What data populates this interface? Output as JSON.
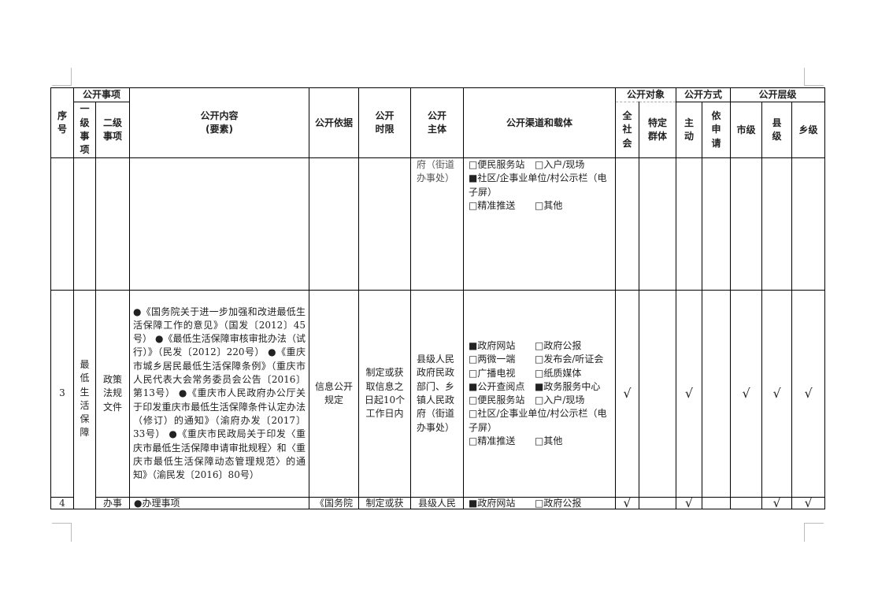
{
  "header": {
    "seq": "序号",
    "matter_group": "公开事项",
    "level1": "一级事项",
    "level2": "二级事项",
    "content": "公开内容",
    "content_sub": "(要素)",
    "basis": "公开依据",
    "time_limit": "公开时限",
    "subject": "公开主体",
    "channels": "公开渠道和载体",
    "target_group": "公开对象",
    "target_all": "全社会",
    "target_specific": "特定群体",
    "method_group": "公开方式",
    "method_active": "主动",
    "method_request": "依申请",
    "level_group": "公开层级",
    "level_city": "市级",
    "level_county": "县级",
    "level_town": "乡级"
  },
  "rows": [
    {
      "seq": "",
      "level1": "",
      "level2": "",
      "content": "",
      "basis": "",
      "time_limit": "",
      "subject": "府（街道办事处）",
      "channels": [
        {
          "label": "便民服务站",
          "checked": false
        },
        {
          "label": "入户/现场",
          "checked": false
        },
        {
          "label": "社区/企事业单位/村公示栏（电子屏）",
          "checked": true,
          "full": true
        },
        {
          "label": "精准推送",
          "checked": false
        },
        {
          "label": "其他",
          "checked": false
        }
      ],
      "checks": [
        "",
        "",
        "",
        "",
        "",
        "",
        ""
      ]
    },
    {
      "seq": "3",
      "level1": "最低生活保障",
      "level2": "政策法规文件",
      "content": "●《国务院关于进一步加强和改进最低生活保障工作的意见》（国发〔2012〕45号） ●《最低生活保障审核审批办法（试行）》（民发〔2012〕220号） ●《重庆市城乡居民最低生活保障条例》（重庆市人民代表大会常务委员会公告〔2016〕第13号） ●《重庆市人民政府办公厅关于印发重庆市最低生活保障条件认定办法（修订）的通知》（渝府办发〔2017〕33号） ●《重庆市民政局关于印发〈重庆市最低生活保障申请审批规程〉和〈重庆市最低生活保障动态管理规范〉的通知》（渝民发〔2016〕80号）",
      "basis": "信息公开规定",
      "time_limit": "制定或获取信息之日起10个工作日内",
      "subject": "县级人民政府民政部门、乡镇人民政府（街道办事处）",
      "channels": [
        {
          "label": "政府网站",
          "checked": true
        },
        {
          "label": "政府公报",
          "checked": false
        },
        {
          "label": "两微一端",
          "checked": false
        },
        {
          "label": "发布会/听证会",
          "checked": false
        },
        {
          "label": "广播电视",
          "checked": false
        },
        {
          "label": "纸质媒体",
          "checked": false
        },
        {
          "label": "公开查阅点",
          "checked": true
        },
        {
          "label": "政务服务中心",
          "checked": true
        },
        {
          "label": "便民服务站",
          "checked": false
        },
        {
          "label": "入户/现场",
          "checked": false
        },
        {
          "label": "社区/企事业单位/村公示栏（电子屏）",
          "checked": false,
          "full": true
        },
        {
          "label": "精准推送",
          "checked": false
        },
        {
          "label": "其他",
          "checked": false
        }
      ],
      "checks": [
        "√",
        "",
        "√",
        "",
        "√",
        "√",
        "√"
      ]
    },
    {
      "seq": "4",
      "level1": "",
      "level2": "办事",
      "content": "●办理事项",
      "basis": "《国务院",
      "time_limit": "制定或获",
      "subject": "县级人民",
      "channels": [
        {
          "label": "政府网站",
          "checked": true
        },
        {
          "label": "政府公报",
          "checked": false
        }
      ],
      "checks": [
        "√",
        "",
        "√",
        "",
        "",
        "√",
        "√"
      ]
    }
  ],
  "checkbox_glyphs": {
    "checked": "■",
    "unchecked": "□"
  }
}
